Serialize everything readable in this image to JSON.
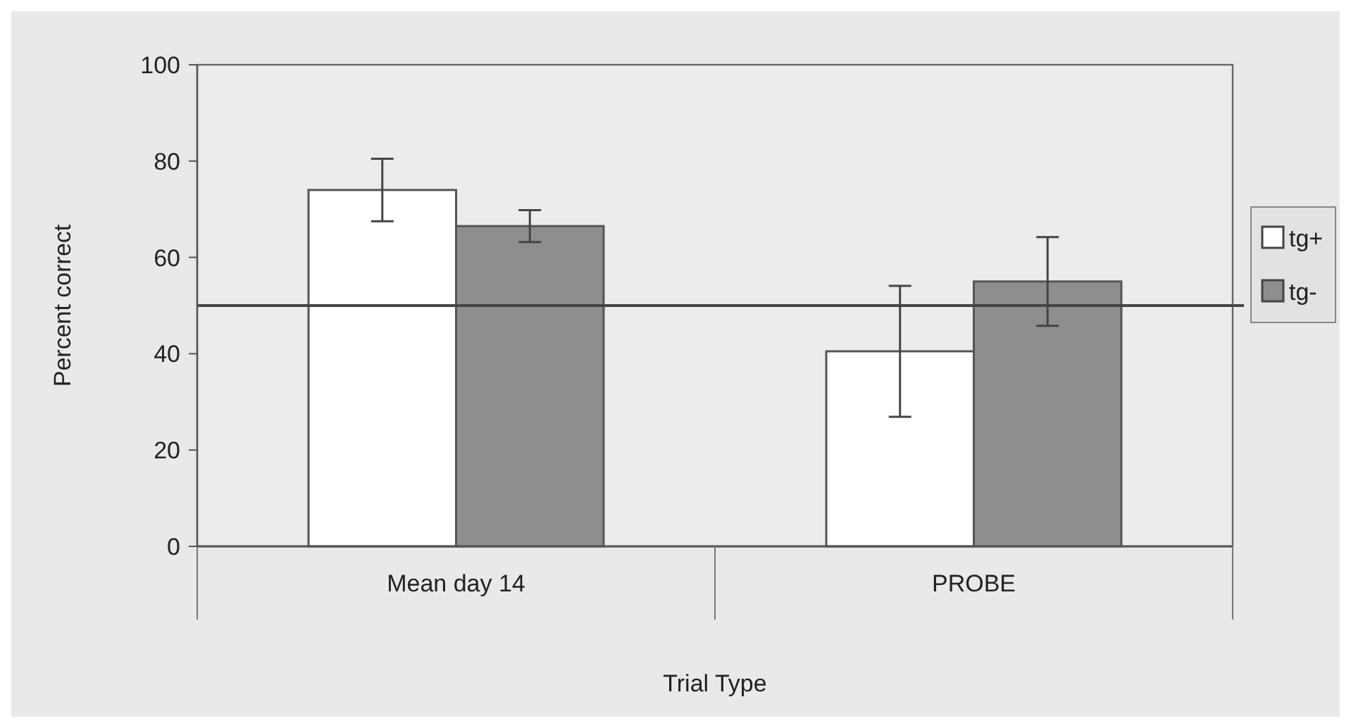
{
  "chart_data": {
    "type": "bar",
    "xlabel": "Trial Type",
    "ylabel": "Percent correct",
    "categories": [
      "Mean day 14",
      "PROBE"
    ],
    "series": [
      {
        "name": "tg+",
        "color": "#ffffff",
        "values": [
          74,
          40.5
        ],
        "errors": [
          6.5,
          13.6
        ]
      },
      {
        "name": "tg-",
        "color": "#8e8e8e",
        "values": [
          66.5,
          55
        ],
        "errors": [
          3.3,
          9.2
        ]
      }
    ],
    "ylim": [
      0,
      100
    ],
    "yticks": [
      0,
      20,
      40,
      60,
      80,
      100
    ],
    "grid": false,
    "legend": "right",
    "ref_lines": [
      {
        "axis": "y",
        "value": 50,
        "color": "#444444"
      }
    ]
  }
}
